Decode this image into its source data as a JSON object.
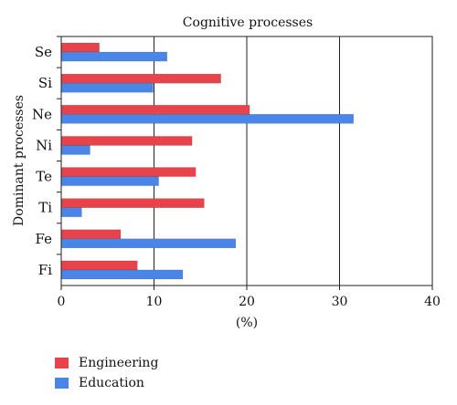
{
  "chart_data": {
    "type": "bar",
    "orientation": "horizontal",
    "title": "Cognitive processes",
    "xlabel": "(%)",
    "ylabel": "Dominant processes",
    "xlim": [
      0,
      40
    ],
    "xticks": [
      0,
      10,
      20,
      30,
      40
    ],
    "grid": "vertical lines at 10, 20, 30",
    "legend_position": "bottom-left",
    "categories": [
      "Se",
      "Si",
      "Ne",
      "Ni",
      "Te",
      "Ti",
      "Fe",
      "Fi"
    ],
    "series": [
      {
        "name": "Engineering",
        "color": "#e8434b",
        "values": [
          4.1,
          17.2,
          20.3,
          14.1,
          14.5,
          15.4,
          6.4,
          8.2
        ]
      },
      {
        "name": "Education",
        "color": "#4a86e8",
        "values": [
          11.4,
          9.9,
          31.5,
          3.1,
          10.5,
          2.2,
          18.8,
          13.1
        ]
      }
    ]
  }
}
